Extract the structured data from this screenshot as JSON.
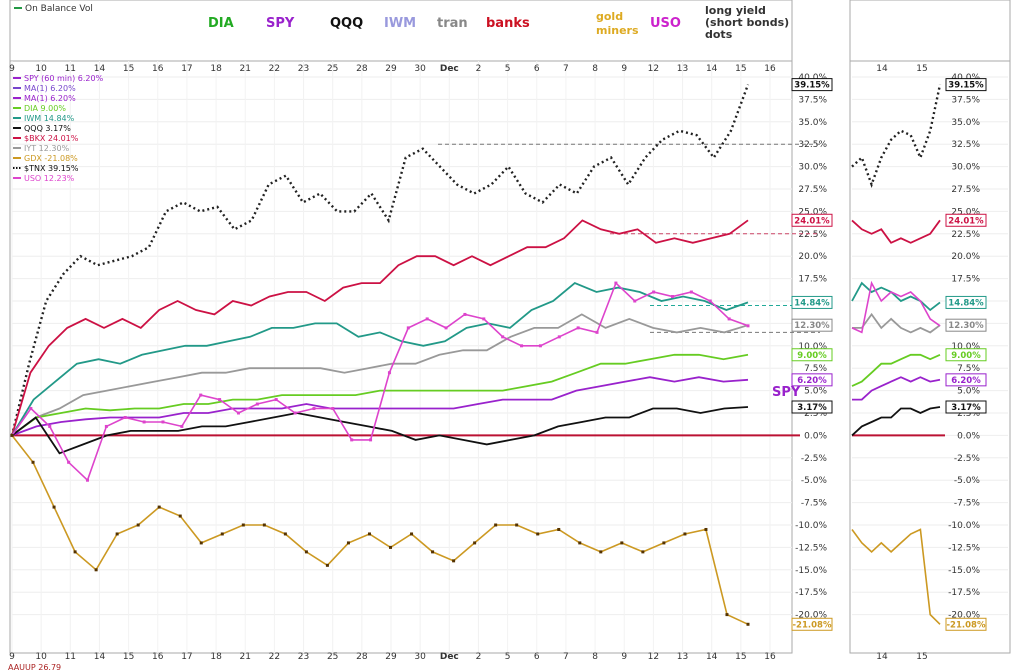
{
  "panel_title": "On Balance Vol",
  "bottom_label": "AAUUP 26.79",
  "series_labels": [
    {
      "key": "dia",
      "text": "DIA",
      "color": "#22aa22"
    },
    {
      "key": "spy",
      "text": "SPY",
      "color": "#9922cc"
    },
    {
      "key": "qqq",
      "text": "QQQ",
      "color": "#111111"
    },
    {
      "key": "iwm",
      "text": "IWM",
      "color": "#9999dd"
    },
    {
      "key": "tran",
      "text": "tran",
      "color": "#888888"
    },
    {
      "key": "banks",
      "text": "banks",
      "color": "#cc1122"
    },
    {
      "key": "gold1",
      "text": "gold",
      "color": "#ddaa22"
    },
    {
      "key": "gold2",
      "text": "miners",
      "color": "#ddaa22"
    },
    {
      "key": "uso",
      "text": "USO",
      "color": "#cc22cc"
    },
    {
      "key": "ly1",
      "text": "long yield",
      "color": "#333333"
    },
    {
      "key": "ly2",
      "text": "(short bonds)",
      "color": "#333333"
    },
    {
      "key": "ly3",
      "text": "dots",
      "color": "#333333"
    }
  ],
  "spy_annotation": "SPY",
  "legend": [
    {
      "text": "SPY (60 min) 6.20%",
      "color": "#9922cc"
    },
    {
      "text": "MA(1) 6.20%",
      "color": "#7744cc"
    },
    {
      "text": "MA(1) 6.20%",
      "color": "#9922cc"
    },
    {
      "text": "DIA 9.00%",
      "color": "#66cc22"
    },
    {
      "text": "IWM 14.84%",
      "color": "#229988"
    },
    {
      "text": "QQQ 3.17%",
      "color": "#111111"
    },
    {
      "text": "$BKX 24.01%",
      "color": "#cc1144"
    },
    {
      "text": "IYT 12.30%",
      "color": "#999999"
    },
    {
      "text": "GDX -21.08%",
      "color": "#cc9922"
    },
    {
      "text": "$TNX 39.15%",
      "color": "#111111"
    },
    {
      "text": "USO 12.23%",
      "color": "#dd44cc"
    }
  ],
  "chart_data": {
    "type": "line",
    "ylim": [
      -22.5,
      40.0
    ],
    "y_ticks": [
      "40.0%",
      "37.5%",
      "35.0%",
      "32.5%",
      "30.0%",
      "27.5%",
      "25.0%",
      "22.5%",
      "20.0%",
      "17.5%",
      "15.0%",
      "12.5%",
      "10.0%",
      "7.5%",
      "5.0%",
      "2.5%",
      "0.0%",
      "-2.5%",
      "-5.0%",
      "-7.5%",
      "-10.0%",
      "-12.5%",
      "-15.0%",
      "-17.5%",
      "-20.0%"
    ],
    "x_ticks": [
      "9",
      "10",
      "11",
      "14",
      "15",
      "16",
      "17",
      "18",
      "21",
      "22",
      "23",
      "25",
      "28",
      "29",
      "30",
      "Dec",
      "2",
      "5",
      "6",
      "7",
      "8",
      "9",
      "12",
      "13",
      "14",
      "15",
      "16"
    ],
    "x_ticks_mini": [
      "14",
      "15"
    ],
    "reference_lines": [
      {
        "series": "$TNX",
        "value": 32.5
      },
      {
        "series": "$BKX",
        "value": 22.5
      },
      {
        "series": "IWM",
        "value": 14.5
      },
      {
        "series": "IYT",
        "value": 11.5
      }
    ],
    "last_value_badges": [
      {
        "text": "39.15%",
        "value": 39.15,
        "color": "#111111"
      },
      {
        "text": "24.01%",
        "value": 24.01,
        "color": "#cc1144"
      },
      {
        "text": "14.84%",
        "value": 14.84,
        "color": "#229988"
      },
      {
        "text": "12.30%",
        "value": 12.3,
        "color": "#888888"
      },
      {
        "text": "9.00%",
        "value": 9.0,
        "color": "#66cc22"
      },
      {
        "text": "6.20%",
        "value": 6.2,
        "color": "#9922cc"
      },
      {
        "text": "3.17%",
        "value": 3.17,
        "color": "#111111"
      },
      {
        "text": "-21.08%",
        "value": -21.08,
        "color": "#cc9922"
      }
    ],
    "series": [
      {
        "name": "$TNX",
        "color": "#222222",
        "style": "dotted",
        "values": [
          0,
          8,
          15,
          18,
          20,
          19,
          19.5,
          20,
          21,
          25,
          26,
          25,
          25.5,
          23,
          24,
          28,
          29,
          26,
          27,
          25,
          25,
          27,
          24,
          31,
          32,
          30,
          28,
          27,
          28,
          30,
          27,
          26,
          28,
          27,
          30,
          31,
          28,
          31,
          33,
          34,
          33.5,
          31,
          34,
          39.15
        ]
      },
      {
        "name": "$BKX",
        "color": "#cc1144",
        "style": "solid",
        "values": [
          0,
          7,
          10,
          12,
          13,
          12,
          13,
          12,
          14,
          15,
          14,
          13.5,
          15,
          14.5,
          15.5,
          16,
          16,
          15,
          16.5,
          17,
          17,
          19,
          20,
          20,
          19,
          20,
          19,
          20,
          21,
          21,
          22,
          24,
          23,
          22.5,
          23,
          21.5,
          22,
          21.5,
          22,
          22.5,
          24.01
        ]
      },
      {
        "name": "IWM",
        "color": "#229988",
        "style": "solid",
        "values": [
          0,
          4,
          6,
          8,
          8.5,
          8,
          9,
          9.5,
          10,
          10,
          10.5,
          11,
          12,
          12,
          12.5,
          12.5,
          11,
          11.5,
          10.5,
          10,
          10.5,
          12,
          12.5,
          12,
          14,
          15,
          17,
          16,
          16.5,
          16,
          15,
          15.5,
          15,
          14,
          14.84
        ]
      },
      {
        "name": "IYT",
        "color": "#999999",
        "style": "solid",
        "values": [
          0,
          2,
          3,
          4.5,
          5,
          5.5,
          6,
          6.5,
          7,
          7,
          7.5,
          7.5,
          7.5,
          7.5,
          7,
          7.5,
          8,
          8,
          9,
          9.5,
          9.5,
          11,
          12,
          12,
          13.5,
          12,
          13,
          12,
          11.5,
          12,
          11.5,
          12.3
        ]
      },
      {
        "name": "DIA",
        "color": "#66cc22",
        "style": "solid",
        "values": [
          0,
          2,
          2.5,
          3,
          2.8,
          3,
          3,
          3.5,
          3.5,
          4,
          4,
          4.5,
          4.5,
          4.5,
          4.5,
          5,
          5,
          5,
          5,
          5,
          5,
          5.5,
          6,
          7,
          8,
          8,
          8.5,
          9,
          9,
          8.5,
          9
        ]
      },
      {
        "name": "SPY",
        "color": "#9922cc",
        "style": "solid",
        "values": [
          0,
          1,
          1.5,
          1.8,
          2,
          2,
          2,
          2.5,
          2.5,
          3,
          3,
          3,
          3.5,
          3,
          3,
          3,
          3,
          3,
          3,
          3.5,
          4,
          4,
          4,
          5,
          5.5,
          6,
          6.5,
          6,
          6.5,
          6,
          6.2
        ]
      },
      {
        "name": "QQQ",
        "color": "#111111",
        "style": "solid",
        "values": [
          0,
          2,
          -2,
          -1,
          0,
          0.5,
          0.5,
          0.5,
          1,
          1,
          1.5,
          2,
          2.5,
          2,
          1.5,
          1,
          0.5,
          -0.5,
          0,
          -0.5,
          -1,
          -0.5,
          0,
          1,
          1.5,
          2,
          2,
          3,
          3,
          2.5,
          3,
          3.17
        ]
      },
      {
        "name": "USO",
        "color": "#dd44cc",
        "style": "square",
        "values": [
          0,
          3,
          1,
          -3,
          -5,
          1,
          2,
          1.5,
          1.5,
          1,
          4.5,
          4,
          2.5,
          3.5,
          4,
          2.5,
          3,
          3,
          -0.5,
          -0.5,
          7,
          12,
          13,
          12,
          13.5,
          13,
          11,
          10,
          10,
          11,
          12,
          11.5,
          17,
          15,
          16,
          15.5,
          16,
          15,
          13,
          12.23
        ]
      },
      {
        "name": "GDX",
        "color": "#cc9922",
        "style": "diamond",
        "values": [
          0,
          -3,
          -8,
          -13,
          -15,
          -11,
          -10,
          -8,
          -9,
          -12,
          -11,
          -10,
          -10,
          -11,
          -13,
          -14.5,
          -12,
          -11,
          -12.5,
          -11,
          -13,
          -14,
          -12,
          -10,
          -10,
          -11,
          -10.5,
          -12,
          -13,
          -12,
          -13,
          -12,
          -11,
          -10.5,
          -20,
          -21.08
        ]
      }
    ]
  }
}
